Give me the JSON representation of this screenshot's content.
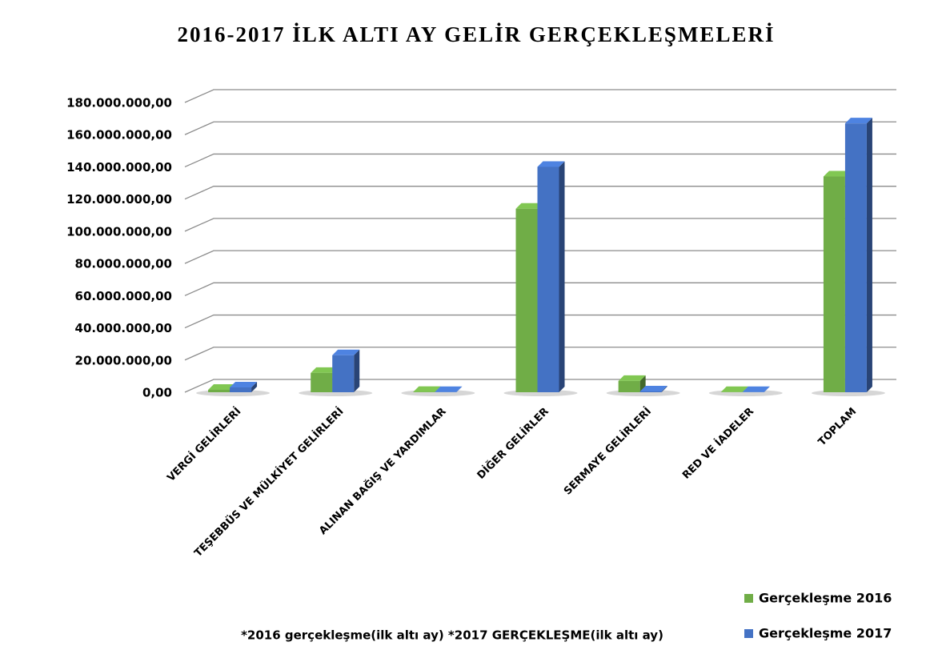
{
  "chart_data": {
    "type": "bar3d",
    "title": "2016-2017 İLK ALTI AY GELİR GERÇEKLEŞMELERİ",
    "note": "*2016 gerçekleşme(ilk altı ay) *2017 GERÇEKLEŞME(ilk altı ay)",
    "categories": [
      "VERGİ GELİRLERİ",
      "TEŞEBBÜS VE MÜLKİYET GELİRLERİ",
      "ALINAN BAĞIŞ VE YARDIMLAR",
      "DİĞER GELİRLER",
      "SERMAYE GELİRLERİ",
      "RED VE İADELER",
      "TOPLAM"
    ],
    "series": [
      {
        "name": "Gerçekleşme 2016",
        "color": "#70ad47",
        "values": [
          1500000,
          12000000,
          200000,
          114000000,
          7000000,
          100000,
          134000000
        ]
      },
      {
        "name": "Gerçekleşme 2017",
        "color": "#4472c4",
        "values": [
          3000000,
          23000000,
          100000,
          140000000,
          500000,
          100000,
          167000000
        ]
      }
    ],
    "ylim": [
      0,
      180000000
    ],
    "yticks": [
      {
        "value": 0,
        "label": "0,00"
      },
      {
        "value": 20000000,
        "label": "20.000.000,00"
      },
      {
        "value": 40000000,
        "label": "40.000.000,00"
      },
      {
        "value": 60000000,
        "label": "60.000.000,00"
      },
      {
        "value": 80000000,
        "label": "80.000.000,00"
      },
      {
        "value": 100000000,
        "label": "100.000.000,00"
      },
      {
        "value": 120000000,
        "label": "120.000.000,00"
      },
      {
        "value": 140000000,
        "label": "140.000.000,00"
      },
      {
        "value": 160000000,
        "label": "160.000.000,00"
      },
      {
        "value": 180000000,
        "label": "180.000.000,00"
      }
    ],
    "grid": true,
    "legend": "bottom-right"
  }
}
